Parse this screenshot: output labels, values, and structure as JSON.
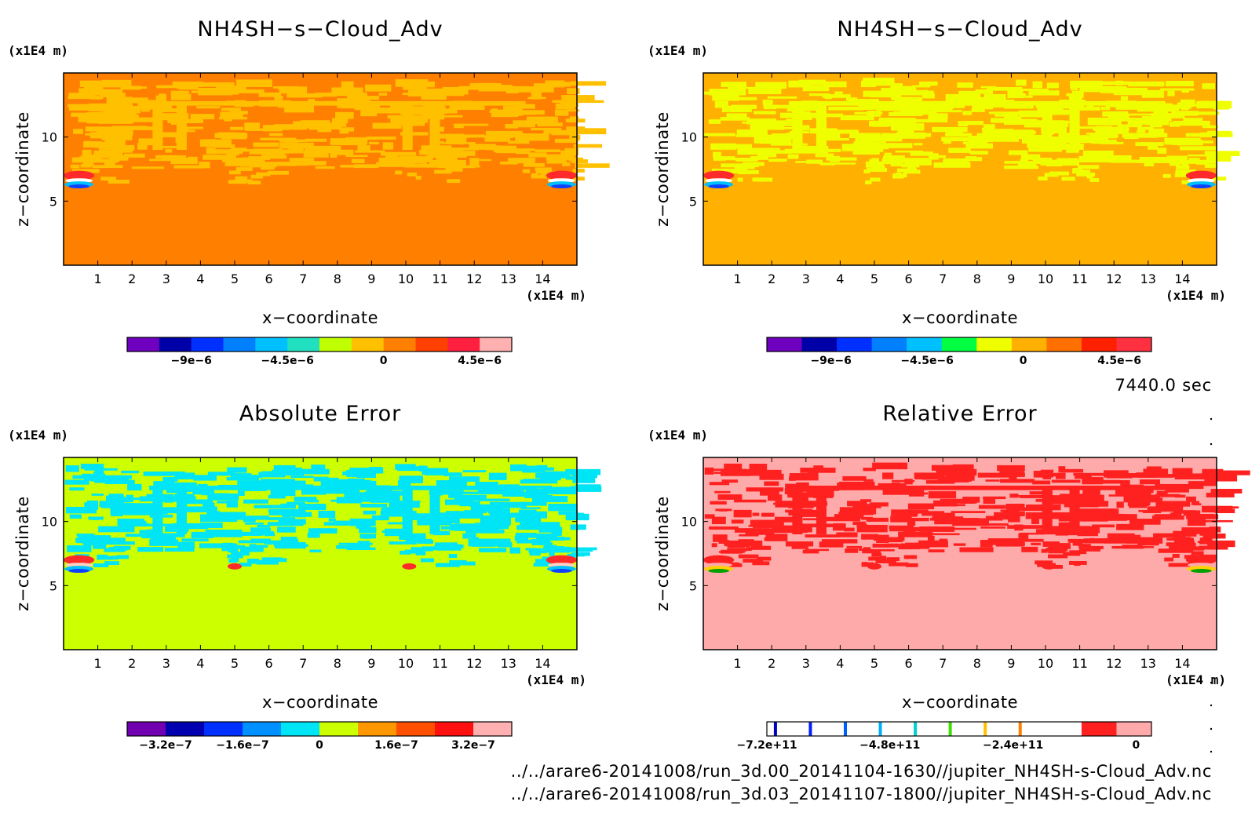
{
  "time_label": "7440.0 sec",
  "files": [
    "../../arare6-20141008/run_3d.00_20141104-1630//jupiter_NH4SH-s-Cloud_Adv.nc",
    "../../arare6-20141008/run_3d.03_20141107-1800//jupiter_NH4SH-s-Cloud_Adv.nc"
  ],
  "chart_data": [
    {
      "type": "heatmap",
      "title": "NH4SH−s−Cloud_Adv",
      "xlabel": "x−coordinate",
      "ylabel": "z−coordinate",
      "x_unit": "(x1E4 m)",
      "y_unit": "(x1E4 m)",
      "xlim": [
        0,
        15
      ],
      "ylim": [
        0,
        15
      ],
      "xticks": [
        "1",
        "2",
        "3",
        "4",
        "5",
        "6",
        "7",
        "8",
        "9",
        "10",
        "11",
        "12",
        "13",
        "14"
      ],
      "yticks": [
        "5",
        "10"
      ],
      "background_color": "#ff7f00",
      "pattern_color": "#ffc000",
      "core_colors": [
        "#ff2a2a",
        "#ffffff",
        "#00bfff",
        "#1040ff"
      ],
      "colorbar": {
        "colors": [
          "#7000c0",
          "#0000a8",
          "#0030ff",
          "#0080ff",
          "#00c0ff",
          "#20e0c0",
          "#c0ff00",
          "#ffc000",
          "#ff8000",
          "#ff4000",
          "#ff2040",
          "#ffb0b0"
        ],
        "ticks": [
          "−9e−6",
          "−4.5e−6",
          "0",
          "4.5e−6"
        ],
        "tick_values": [
          -9e-06,
          -4.5e-06,
          0,
          4.5e-06
        ],
        "range": [
          -1.2e-05,
          6e-06
        ]
      }
    },
    {
      "type": "heatmap",
      "title": "NH4SH−s−Cloud_Adv",
      "xlabel": "x−coordinate",
      "ylabel": "z−coordinate",
      "x_unit": "(x1E4 m)",
      "y_unit": "(x1E4 m)",
      "xlim": [
        0,
        15
      ],
      "ylim": [
        0,
        15
      ],
      "xticks": [
        "1",
        "2",
        "3",
        "4",
        "5",
        "6",
        "7",
        "8",
        "9",
        "10",
        "11",
        "12",
        "13",
        "14"
      ],
      "yticks": [
        "5",
        "10"
      ],
      "background_color": "#ffb000",
      "pattern_color": "#f0ff00",
      "core_colors": [
        "#ff2a2a",
        "#ffffff",
        "#00bfff",
        "#1040ff"
      ],
      "colorbar": {
        "colors": [
          "#7000c0",
          "#0000a8",
          "#0030ff",
          "#0080ff",
          "#00c0ff",
          "#00ff40",
          "#f0ff00",
          "#ffb000",
          "#ff7000",
          "#ff2000",
          "#ff3040"
        ],
        "ticks": [
          "−9e−6",
          "−4.5e−6",
          "0",
          "4.5e−6"
        ],
        "tick_values": [
          -9e-06,
          -4.5e-06,
          0,
          4.5e-06
        ],
        "range": [
          -1.2e-05,
          6e-06
        ]
      }
    },
    {
      "type": "heatmap",
      "title": "Absolute Error",
      "xlabel": "x−coordinate",
      "ylabel": "z−coordinate",
      "x_unit": "(x1E4 m)",
      "y_unit": "(x1E4 m)",
      "xlim": [
        0,
        15
      ],
      "ylim": [
        0,
        15
      ],
      "xticks": [
        "1",
        "2",
        "3",
        "4",
        "5",
        "6",
        "7",
        "8",
        "9",
        "10",
        "11",
        "12",
        "13",
        "14"
      ],
      "yticks": [
        "5",
        "10"
      ],
      "background_color": "#ccff00",
      "pattern_color": "#00e5f5",
      "core_colors": [
        "#ff2a2a",
        "#ffd0c0",
        "#00bfff",
        "#1040ff"
      ],
      "colorbar": {
        "colors": [
          "#7000b0",
          "#0000b0",
          "#0030ff",
          "#0090ff",
          "#00e5f5",
          "#ccff00",
          "#ff9800",
          "#ff5000",
          "#ff1010",
          "#ffb0b0"
        ],
        "ticks": [
          "−3.2e−7",
          "−1.6e−7",
          "0",
          "1.6e−7",
          "3.2e−7"
        ],
        "tick_values": [
          -3.2e-07,
          -1.6e-07,
          0,
          1.6e-07,
          3.2e-07
        ],
        "range": [
          -4e-07,
          4e-07
        ]
      }
    },
    {
      "type": "heatmap",
      "title": "Relative Error",
      "xlabel": "x−coordinate",
      "ylabel": "z−coordinate",
      "x_unit": "(x1E4 m)",
      "y_unit": "(x1E4 m)",
      "xlim": [
        0,
        15
      ],
      "ylim": [
        0,
        15
      ],
      "xticks": [
        "1",
        "2",
        "3",
        "4",
        "5",
        "6",
        "7",
        "8",
        "9",
        "10",
        "11",
        "12",
        "13",
        "14"
      ],
      "yticks": [
        "5",
        "10"
      ],
      "background_color": "#ffaaaa",
      "pattern_color": "#ff2020",
      "core_colors": [
        "#ff2020",
        "#ffaaaa",
        "#ffd000",
        "#00a000"
      ],
      "colorbar": {
        "segments": [
          {
            "color": "#ffffff",
            "line": "#0000c0"
          },
          {
            "color": "#ffffff",
            "line": "#0020ff"
          },
          {
            "color": "#ffffff",
            "line": "#0060ff"
          },
          {
            "color": "#ffffff",
            "line": "#00b0ff"
          },
          {
            "color": "#ffffff",
            "line": "#00d0d0"
          },
          {
            "color": "#ffffff",
            "line": "#40e000"
          },
          {
            "color": "#ffffff",
            "line": "#ffc000"
          },
          {
            "color": "#ffffff",
            "line": "#ff8000"
          },
          {
            "color": "#ffffff",
            "line": null
          },
          {
            "color": "#ff2020",
            "line": null
          },
          {
            "color": "#ffaaaa",
            "line": null
          }
        ],
        "ticks": [
          "−7.2e+11",
          "−4.8e+11",
          "−2.4e+11",
          "0"
        ],
        "tick_values": [
          -720000000000.0,
          -480000000000.0,
          -240000000000.0,
          0
        ],
        "range": [
          -720000000000.0,
          30000000000.0
        ]
      }
    }
  ]
}
